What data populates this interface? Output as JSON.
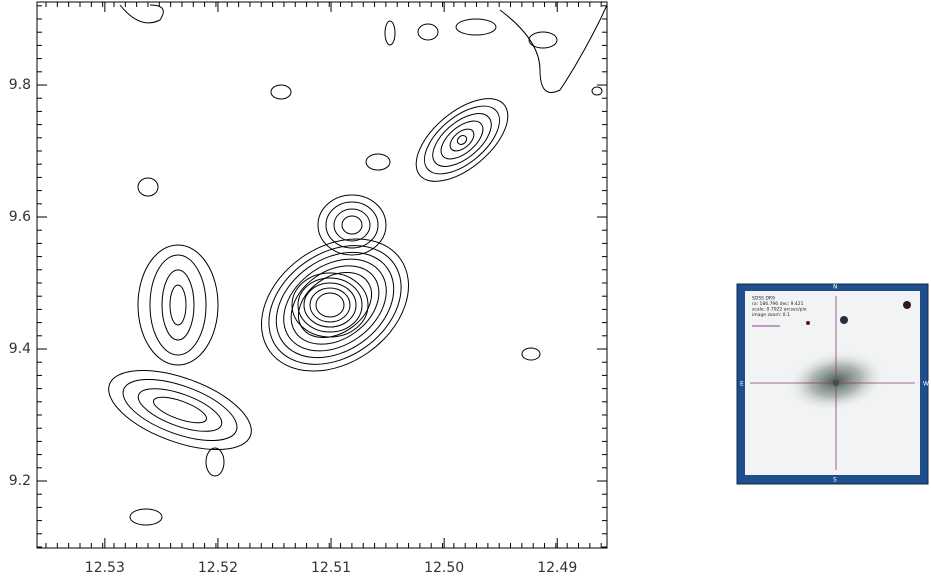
{
  "chart_data": {
    "type": "contour",
    "xlim": [
      12.536,
      12.4856
    ],
    "ylim": [
      9.0985,
      9.9258
    ],
    "xticks": [
      12.53,
      12.52,
      12.51,
      {
        "value": 12.5,
        "label": "12.50"
      },
      12.49
    ],
    "yticks": [
      9.2,
      9.4,
      9.6,
      9.8
    ]
  },
  "inset": {
    "lines": [
      "SDSS DR9",
      "ra: 186.796 dec: 9.421",
      "scale: 0.7922 arcsec/pix",
      "image zoom: 0.1"
    ],
    "compass": {
      "n": "N",
      "s": "S",
      "e": "E",
      "w": "W"
    }
  }
}
